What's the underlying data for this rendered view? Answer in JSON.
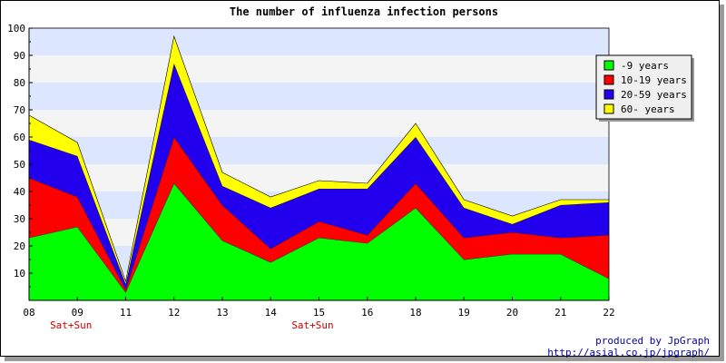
{
  "chart_data": {
    "type": "area",
    "stacked": true,
    "title": "The number of influenza infection persons",
    "xlabel": "",
    "ylabel": "",
    "ylim": [
      0,
      100
    ],
    "yticks": [
      10,
      20,
      30,
      40,
      50,
      60,
      70,
      80,
      90,
      100
    ],
    "categories": [
      "08",
      "09",
      "11",
      "12",
      "13",
      "14",
      "15",
      "16",
      "18",
      "19",
      "20",
      "21",
      "22"
    ],
    "category_notes": [
      {
        "category": "09",
        "note": "Sat+Sun"
      },
      {
        "category": "15",
        "note": "Sat+Sun"
      }
    ],
    "grid": true,
    "legend_position": "top-right",
    "series": [
      {
        "name": "-9 years",
        "color": "#00ff00",
        "values": [
          23,
          27,
          3,
          43,
          22,
          14,
          23,
          21,
          34,
          15,
          17,
          17,
          8
        ]
      },
      {
        "name": "10-19 years",
        "color": "#ff0000",
        "values": [
          22,
          11,
          1,
          17,
          13,
          5,
          6,
          3,
          9,
          8,
          8,
          6,
          16
        ]
      },
      {
        "name": "20-59 years",
        "color": "#2200ee",
        "values": [
          14,
          15,
          2,
          27,
          7,
          15,
          12,
          17,
          17,
          11,
          3,
          12,
          12
        ]
      },
      {
        "name": "60- years",
        "color": "#ffff00",
        "values": [
          9,
          5,
          1,
          10,
          5,
          4,
          3,
          2,
          5,
          3,
          3,
          2,
          1
        ]
      }
    ]
  },
  "footer": {
    "credit_line1": "produced by JpGraph",
    "credit_line2": "http://asial.co.jp/jpgraph/"
  }
}
